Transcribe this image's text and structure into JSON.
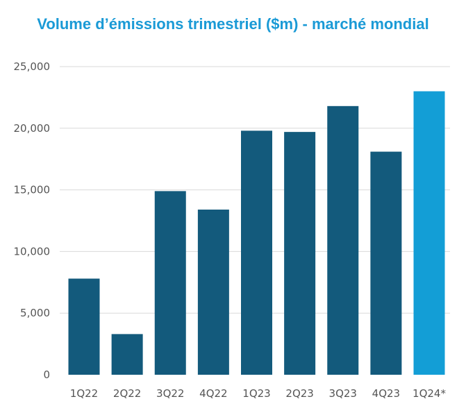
{
  "chart_data": {
    "type": "bar",
    "title": "Volume d’émissions trimestriel ($m)  - marché mondial",
    "xlabel": "",
    "ylabel": "",
    "categories": [
      "1Q22",
      "2Q22",
      "3Q22",
      "4Q22",
      "1Q23",
      "2Q23",
      "3Q23",
      "4Q23",
      "1Q24*"
    ],
    "values": [
      7800,
      3300,
      14900,
      13400,
      19800,
      19700,
      21800,
      18100,
      23000
    ],
    "ylim": [
      0,
      25000
    ],
    "yticks": [
      0,
      5000,
      10000,
      15000,
      20000,
      25000
    ],
    "ytick_labels": [
      "0",
      "5,000",
      "10,000",
      "15,000",
      "20,000",
      "25,000"
    ],
    "grid": true,
    "legend": "none",
    "colors": {
      "bar": "#135a7c",
      "highlight": "#139ed6",
      "title": "#1a9ad6",
      "grid": "#d9d9d9",
      "text": "#555555"
    },
    "highlight_index": 8
  }
}
